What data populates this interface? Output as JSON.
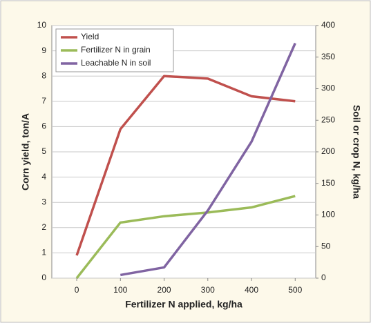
{
  "chart_data": {
    "type": "line",
    "x": [
      0,
      100,
      200,
      300,
      400,
      500
    ],
    "xlabel": "Fertilizer N applied, kg/ha",
    "ylabel": "Corn yield, ton/A",
    "y2label": "Soil or crop N, kg/ha",
    "xlim": [
      -57,
      547
    ],
    "xticks": [
      0,
      100,
      200,
      300,
      400,
      500
    ],
    "ylim": [
      0,
      10
    ],
    "yticks": [
      0,
      1,
      2,
      3,
      4,
      5,
      6,
      7,
      8,
      9,
      10
    ],
    "y2lim": [
      0,
      400
    ],
    "y2ticks": [
      0,
      50,
      100,
      150,
      200,
      250,
      300,
      350,
      400
    ],
    "grid": true,
    "legend": "upper left",
    "series": [
      {
        "name": "Yield",
        "color": "#c0504d",
        "values": [
          0.9,
          5.9,
          8.0,
          7.9,
          7.2,
          7.0
        ]
      },
      {
        "name": "Fertilizer N in grain",
        "color": "#9bbb59",
        "axis": "y2",
        "values": [
          0,
          88,
          98,
          104,
          112,
          130
        ]
      },
      {
        "name": "Leachable N in soil",
        "color": "#8064a2",
        "axis": "y2",
        "values": [
          null,
          5,
          17,
          107,
          216,
          372
        ]
      }
    ]
  }
}
